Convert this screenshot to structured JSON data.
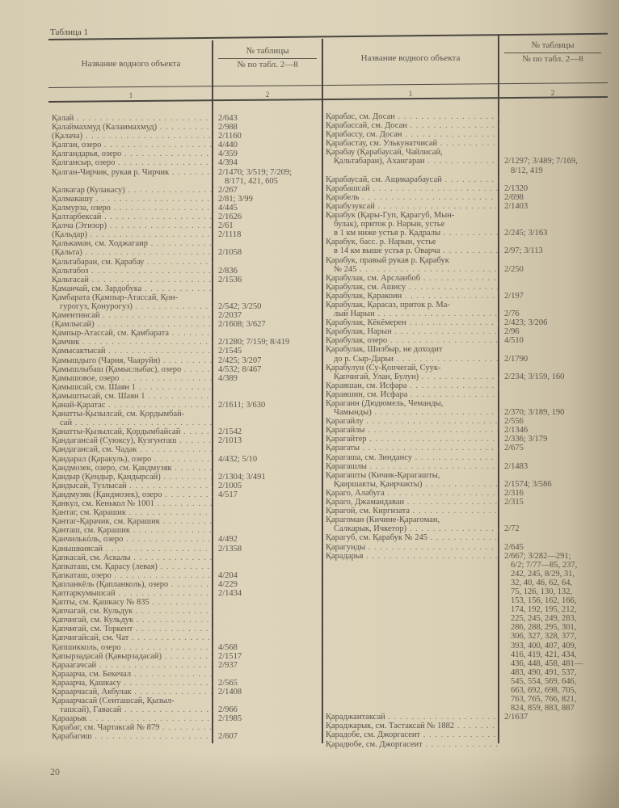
{
  "table_caption": "Таблица 1",
  "header": {
    "name_col": "Название водного объекта",
    "ref_col_top": "№ таблицы",
    "ref_col_bottom": "№ по табл. 2—8",
    "col_num_1": "1",
    "col_num_2": "2"
  },
  "page_number": "20",
  "left_rows": [
    {
      "name": [
        "Қалай"
      ],
      "ref": [
        "2/643"
      ]
    },
    {
      "name": [
        "Қалаймахмуд (Калаимахмуд)"
      ],
      "ref": [
        "2/988"
      ]
    },
    {
      "name": [
        "(Қалача)"
      ],
      "ref": [
        "2/1160"
      ]
    },
    {
      "name": [
        "Қалган, озеро"
      ],
      "ref": [
        "4/440"
      ]
    },
    {
      "name": [
        "Қалгандарья, озеро"
      ],
      "ref": [
        "4/359"
      ]
    },
    {
      "name": [
        "Қалгансыр, озеро"
      ],
      "ref": [
        "4/394"
      ]
    },
    {
      "name": [
        "Қалган-Чирчик, рукав р. Чирчик"
      ],
      "ref": [
        "2/1470; 3/519; 7/209;",
        "8/171, 421, 605"
      ]
    },
    {
      "name": [
        "Қалкагар (Кулакасу)"
      ],
      "ref": [
        "2/267"
      ]
    },
    {
      "name": [
        "Қалмакашу"
      ],
      "ref": [
        "2/81; 3/99"
      ]
    },
    {
      "name": [
        "Қалмурза, озеро"
      ],
      "ref": [
        "4/445"
      ]
    },
    {
      "name": [
        "Қалтарбексай"
      ],
      "ref": [
        "2/1626"
      ]
    },
    {
      "name": [
        "Қалча (Эгизор)"
      ],
      "ref": [
        "2/61"
      ]
    },
    {
      "name": [
        "(Қальдар)"
      ],
      "ref": [
        "2/1118"
      ]
    },
    {
      "name": [
        "Қалькаман, см. Ходжагаир"
      ],
      "ref": []
    },
    {
      "name": [
        "(Қальта)"
      ],
      "ref": [
        "2/1058"
      ]
    },
    {
      "name": [
        "Қальтабаран, см. Қарабау"
      ],
      "ref": []
    },
    {
      "name": [
        "Қальтабоз"
      ],
      "ref": [
        "2/836"
      ]
    },
    {
      "name": [
        "Қальтасай"
      ],
      "ref": [
        "2/1536"
      ]
    },
    {
      "name": [
        "Қаманчай, см. Зардобука"
      ],
      "ref": []
    },
    {
      "name": [
        "Қамбарата (Қампыр-Атассай, Қон-",
        "гурогуз, Қонурогуз)"
      ],
      "ref": [
        "2/542; 3/250"
      ]
    },
    {
      "name": [
        "Қаментинсай"
      ],
      "ref": [
        "2/2037"
      ]
    },
    {
      "name": [
        "(Қамлысай)"
      ],
      "ref": [
        "2/1608; 3/627"
      ]
    },
    {
      "name": [
        "Қампыр-Атассай, см. Қамбарата"
      ],
      "ref": []
    },
    {
      "name": [
        "Қамчик"
      ],
      "ref": [
        "2/1280; 7/159; 8/419"
      ]
    },
    {
      "name": [
        "Қамысактысай"
      ],
      "ref": [
        "2/1545"
      ]
    },
    {
      "name": [
        "Қамышдыго (Чария, Чааруйя)"
      ],
      "ref": [
        "2/425; 3/207"
      ]
    },
    {
      "name": [
        "Қамышлыбаш (Қамыслыбас), озеро"
      ],
      "ref": [
        "4/532; 8/467"
      ]
    },
    {
      "name": [
        "Қамышовое, озеро"
      ],
      "ref": [
        "4/389"
      ]
    },
    {
      "name": [
        "Қамышсай, см. Шаян 1"
      ],
      "ref": []
    },
    {
      "name": [
        "Қамыштысай, см. Шаян 1"
      ],
      "ref": []
    },
    {
      "name": [
        "Қанай-Қаратас"
      ],
      "ref": [
        "2/1611; 3/630"
      ]
    },
    {
      "name": [
        "Қанатты-Қызылсай, см. Қордымбай-",
        "сай"
      ],
      "ref": []
    },
    {
      "name": [
        "Қанатты-Қызылсай, Қордымбайсай"
      ],
      "ref": [
        "2/1542"
      ]
    },
    {
      "name": [
        "Қандагансай (Суюксу), Кузгунташ"
      ],
      "ref": [
        "2/1013"
      ]
    },
    {
      "name": [
        "Қандагансай, см. Чадак"
      ],
      "ref": []
    },
    {
      "name": [
        "Қандарал (Қаракуль), озеро"
      ],
      "ref": [
        "4/432; 5/10"
      ]
    },
    {
      "name": [
        "Қандмозек, озеро, см. Қандмузяк"
      ],
      "ref": []
    },
    {
      "name": [
        "Қандыр (Қендыр, Қандырсай)"
      ],
      "ref": [
        "2/1304; 3/491"
      ]
    },
    {
      "name": [
        "Қандысай, Тузлысай"
      ],
      "ref": [
        "2/1005"
      ]
    },
    {
      "name": [
        "Қандмузяк (Қандмозек), озеро"
      ],
      "ref": [
        "4/517"
      ]
    },
    {
      "name": [
        "Қанкул, см. Кенькол № 1001"
      ],
      "ref": []
    },
    {
      "name": [
        "Қантаг, см. Қарашик"
      ],
      "ref": []
    },
    {
      "name": [
        "Қантаг-Қарачик, см. Қарашик"
      ],
      "ref": []
    },
    {
      "name": [
        "Қанташ, см. Қарашик"
      ],
      "ref": []
    },
    {
      "name": [
        "Қанчилькόль, озеро"
      ],
      "ref": [
        "4/492"
      ]
    },
    {
      "name": [
        "Қанышкиясай"
      ],
      "ref": [
        "2/1358"
      ]
    },
    {
      "name": [
        "Қапкасай, см. Аскалы"
      ],
      "ref": []
    },
    {
      "name": [
        "Қапкаташ, см. Қарасу (левая)"
      ],
      "ref": []
    },
    {
      "name": [
        "Қапкаташ, озеро"
      ],
      "ref": [
        "4/204"
      ]
    },
    {
      "name": [
        "Қапланкёль (Қапланколь), озеро"
      ],
      "ref": [
        "4/229"
      ]
    },
    {
      "name": [
        "Қаптаркумышсай"
      ],
      "ref": [
        "2/1434"
      ]
    },
    {
      "name": [
        "Қапты, см. Қашкасу № 835"
      ],
      "ref": []
    },
    {
      "name": [
        "Қапчагай, см. Кульдук"
      ],
      "ref": []
    },
    {
      "name": [
        "Қапчигай, см. Кульдук"
      ],
      "ref": []
    },
    {
      "name": [
        "Қапчигай, см. Торкент"
      ],
      "ref": []
    },
    {
      "name": [
        "Қапчигайсай, см. Чат"
      ],
      "ref": []
    },
    {
      "name": [
        "Қапшикколь, озеро"
      ],
      "ref": [
        "4/568"
      ]
    },
    {
      "name": [
        "Қапырзадасай (Қавырзадасай)"
      ],
      "ref": [
        "2/1517"
      ]
    },
    {
      "name": [
        "Қараагачсай"
      ],
      "ref": [
        "2/937"
      ]
    },
    {
      "name": [
        "Қараарча, см. Бекечал"
      ],
      "ref": []
    },
    {
      "name": [
        "Қараарча, Қашкасу"
      ],
      "ref": [
        "2/565"
      ]
    },
    {
      "name": [
        "Қараарчасай, Акбулак"
      ],
      "ref": [
        "2/1408"
      ]
    },
    {
      "name": [
        "Қараарчасай (Сеиташсай, Қызыл-",
        "ташсай), Гавасай"
      ],
      "ref": [
        "2/966"
      ]
    },
    {
      "name": [
        "Қараарык"
      ],
      "ref": [
        "2/1985"
      ]
    },
    {
      "name": [
        "Қарабаг, см. Чартаксай № 879"
      ],
      "ref": []
    },
    {
      "name": [
        "Қарабагиш"
      ],
      "ref": [
        "2/607"
      ]
    }
  ],
  "right_rows": [
    {
      "name": [
        "Қарабас, см. Досан"
      ],
      "ref": []
    },
    {
      "name": [
        "Қарабассай, см. Досан"
      ],
      "ref": []
    },
    {
      "name": [
        "Қарабассу, см. Досан"
      ],
      "ref": []
    },
    {
      "name": [
        "Қарабастау, см. Улькунатчисай"
      ],
      "ref": []
    },
    {
      "name": [
        "Қарабау (Қарабаусай, Чайлисай,",
        "Қальтабаран), Ахангаран"
      ],
      "ref": [
        "2/1297; 3/489; 7/169,",
        "8/12, 419"
      ]
    },
    {
      "name": [
        "Қарабаусай, см. Ащикарабаусай"
      ],
      "ref": []
    },
    {
      "name": [
        "Қарабашсай"
      ],
      "ref": [
        "2/1320"
      ]
    },
    {
      "name": [
        "Қарабель"
      ],
      "ref": [
        "2/698"
      ]
    },
    {
      "name": [
        "Қарабузуксай"
      ],
      "ref": [
        "2/1403"
      ]
    },
    {
      "name": [
        "Қарабук (Қары-Гуп, Қарагуб, Мын-",
        "булак), приток р. Нарын, устье",
        "в 1 км ниже устья р. Қадралы"
      ],
      "ref": [
        "2/245; 3/163"
      ]
    },
    {
      "name": [
        "Қарабук, басс. р. Нарын, устье",
        "в 14 км выше устья р. Оварча"
      ],
      "ref": [
        "2/97; 3/113"
      ]
    },
    {
      "name": [
        "Қарабук, правый рукав р. Қарабук",
        "№ 245"
      ],
      "ref": [
        "2/250"
      ]
    },
    {
      "name": [
        "Қарабулак, см. Арсланбоб"
      ],
      "ref": []
    },
    {
      "name": [
        "Қарабулак, см. Ашису"
      ],
      "ref": []
    },
    {
      "name": [
        "Қарабулак, Қаракоин"
      ],
      "ref": [
        "2/197"
      ]
    },
    {
      "name": [
        "Қарабулак, Қарасаз, приток р. Ма-",
        "лый Нарын"
      ],
      "ref": [
        "2/76"
      ]
    },
    {
      "name": [
        "Қарабулак, Кёкёмерен"
      ],
      "ref": [
        "2/423; 3/206"
      ]
    },
    {
      "name": [
        "Қарабулак, Нарын"
      ],
      "ref": [
        "2/96"
      ]
    },
    {
      "name": [
        "Қарабулак, озеро"
      ],
      "ref": [
        "4/510"
      ]
    },
    {
      "name": [
        "Қарабулак, Шилбыр, не доходит",
        "до р. Сыр-Дарьи"
      ],
      "ref": [
        "2/1790"
      ]
    },
    {
      "name": [
        "Қарабулун (Су-Қопчегай, Суук-",
        "Қапчигай, Улан, Булун)"
      ],
      "ref": [
        "2/234; 3/159, 160"
      ]
    },
    {
      "name": [
        "Қаравшан, см. Исфара"
      ],
      "ref": []
    },
    {
      "name": [
        "Қаравшин, см. Исфара"
      ],
      "ref": []
    },
    {
      "name": [
        "Қарагаин (Дюдюмель, Чеманды,",
        "Чамынды)"
      ],
      "ref": [
        "2/370; 3/189, 190"
      ]
    },
    {
      "name": [
        "Қарагайлу"
      ],
      "ref": [
        "2/556"
      ]
    },
    {
      "name": [
        "Қарагайлы"
      ],
      "ref": [
        "2/1346"
      ]
    },
    {
      "name": [
        "Қарагайтер"
      ],
      "ref": [
        "2/336; 3/179"
      ]
    },
    {
      "name": [
        "Қарагаты"
      ],
      "ref": [
        "2/675"
      ]
    },
    {
      "name": [
        "Қарагаша, см. Зиндансу"
      ],
      "ref": []
    },
    {
      "name": [
        "Қарагашлы"
      ],
      "ref": [
        "2/1483"
      ]
    },
    {
      "name": [
        "Қарагашты (Кичик-Қарагашты,",
        "Қаиршакты, Қаирчакты)"
      ],
      "ref": [
        "2/1574; 3/586"
      ]
    },
    {
      "name": [
        "Қараго, Алабуга"
      ],
      "ref": [
        "2/316"
      ]
    },
    {
      "name": [
        "Қараго, Джамандаван"
      ],
      "ref": [
        "2/315"
      ]
    },
    {
      "name": [
        "Қарагой, см. Киргизата"
      ],
      "ref": []
    },
    {
      "name": [
        "Қарагоман (Кичине-Қарагоман,",
        "Салкарык, Ичкетор)"
      ],
      "ref": [
        "2/72"
      ]
    },
    {
      "name": [
        "Қарагуб, см. Қарабук № 245"
      ],
      "ref": []
    },
    {
      "name": [
        "Қарагунды"
      ],
      "ref": [
        "2/645"
      ]
    },
    {
      "name": [
        "Қарадарья"
      ],
      "ref": [
        "2/667; 3/282—291;",
        "6/2; 7/77—85, 237,",
        "242, 245, 8/29, 31,",
        "32, 40, 46, 62, 64,",
        "75, 126, 130, 132,",
        "153, 156, 162, 166,",
        "174, 192, 195, 212,",
        "225, 245, 249, 283,",
        "286, 288, 295, 301,",
        "306, 327, 328, 377,",
        "393, 400, 407, 409,",
        "416, 419, 421, 434,",
        "436, 448, 458, 481—",
        "483, 490, 491, 537,",
        "545, 554, 569, 646,",
        "663, 692, 698, 705,",
        "763, 765, 766, 821,",
        "824, 859, 883, 887"
      ]
    },
    {
      "name": [
        "Қараджантаксай"
      ],
      "ref": [
        "2/1637"
      ]
    },
    {
      "name": [
        "Қараджарык, см. Тастаксай № 1882"
      ],
      "ref": []
    },
    {
      "name": [
        "Қарадобе, см. Джоргасеит"
      ],
      "ref": []
    },
    {
      "name": [
        "Қарадюбе, см. Джоргасеит"
      ],
      "ref": []
    }
  ]
}
